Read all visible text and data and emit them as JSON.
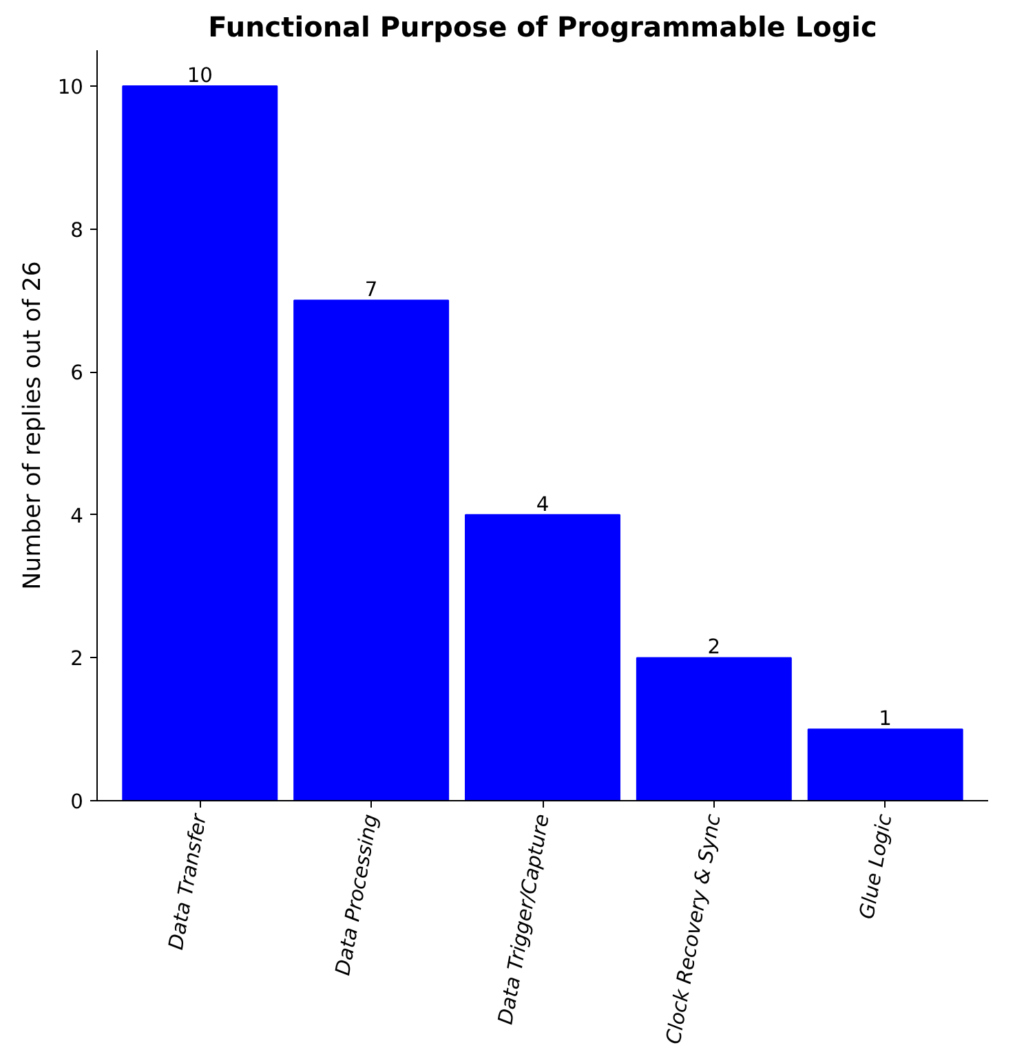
{
  "chart_data": {
    "type": "bar",
    "title": "Functional Purpose of Programmable Logic",
    "ylabel": "Number of replies out of 26",
    "categories": [
      "Data Transfer",
      "Data Processing",
      "Data Trigger/Capture",
      "Clock Recovery & Sync",
      "Glue Logic"
    ],
    "values": [
      10,
      7,
      4,
      2,
      1
    ],
    "color": "#0000ff",
    "ylim": [
      0,
      10.5
    ],
    "yticks": [
      0,
      2,
      4,
      6,
      8,
      10
    ],
    "data_labels": true,
    "grid": false
  }
}
